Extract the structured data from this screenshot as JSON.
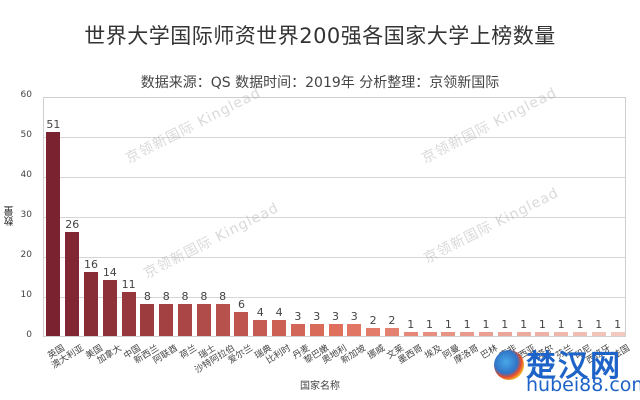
{
  "chart_data": {
    "type": "bar",
    "title": "世界大学国际师资世界200强各国家大学上榜数量",
    "subtitle": "数据来源：QS 数据时间：2019年 分析整理：京领新国际",
    "xlabel": "国家名称",
    "ylabel": "数量",
    "ylim": [
      0,
      60
    ],
    "yticks": [
      0,
      10,
      20,
      30,
      40,
      50,
      60
    ],
    "grid": true,
    "legend": "none",
    "categories": [
      "英国",
      "澳大利亚",
      "美国",
      "加拿大",
      "中国",
      "新西兰",
      "阿联酋",
      "荷兰",
      "瑞士",
      "沙特阿拉伯",
      "爱尔兰",
      "瑞典",
      "比利时",
      "丹麦",
      "黎巴嫩",
      "奥地利",
      "新加坡",
      "挪威",
      "文莱",
      "墨西哥",
      "埃及",
      "阿曼",
      "摩洛哥",
      "巴林",
      "南非",
      "马来西亚",
      "卡塔尔",
      "芬兰",
      "印尼",
      "西班牙",
      "法国"
    ],
    "values": [
      51,
      26,
      16,
      14,
      11,
      8,
      8,
      8,
      8,
      8,
      6,
      4,
      4,
      3,
      3,
      3,
      3,
      2,
      2,
      1,
      1,
      1,
      1,
      1,
      1,
      1,
      1,
      1,
      1,
      1,
      1
    ],
    "color_start": "#7a2230",
    "color_mid": "#e0705e",
    "color_end": "#f3c9c0"
  },
  "watermark": {
    "chart_text": "京领新国际 Kinglead",
    "logo_cn": "楚汉网",
    "logo_en": "hubei88.com"
  }
}
